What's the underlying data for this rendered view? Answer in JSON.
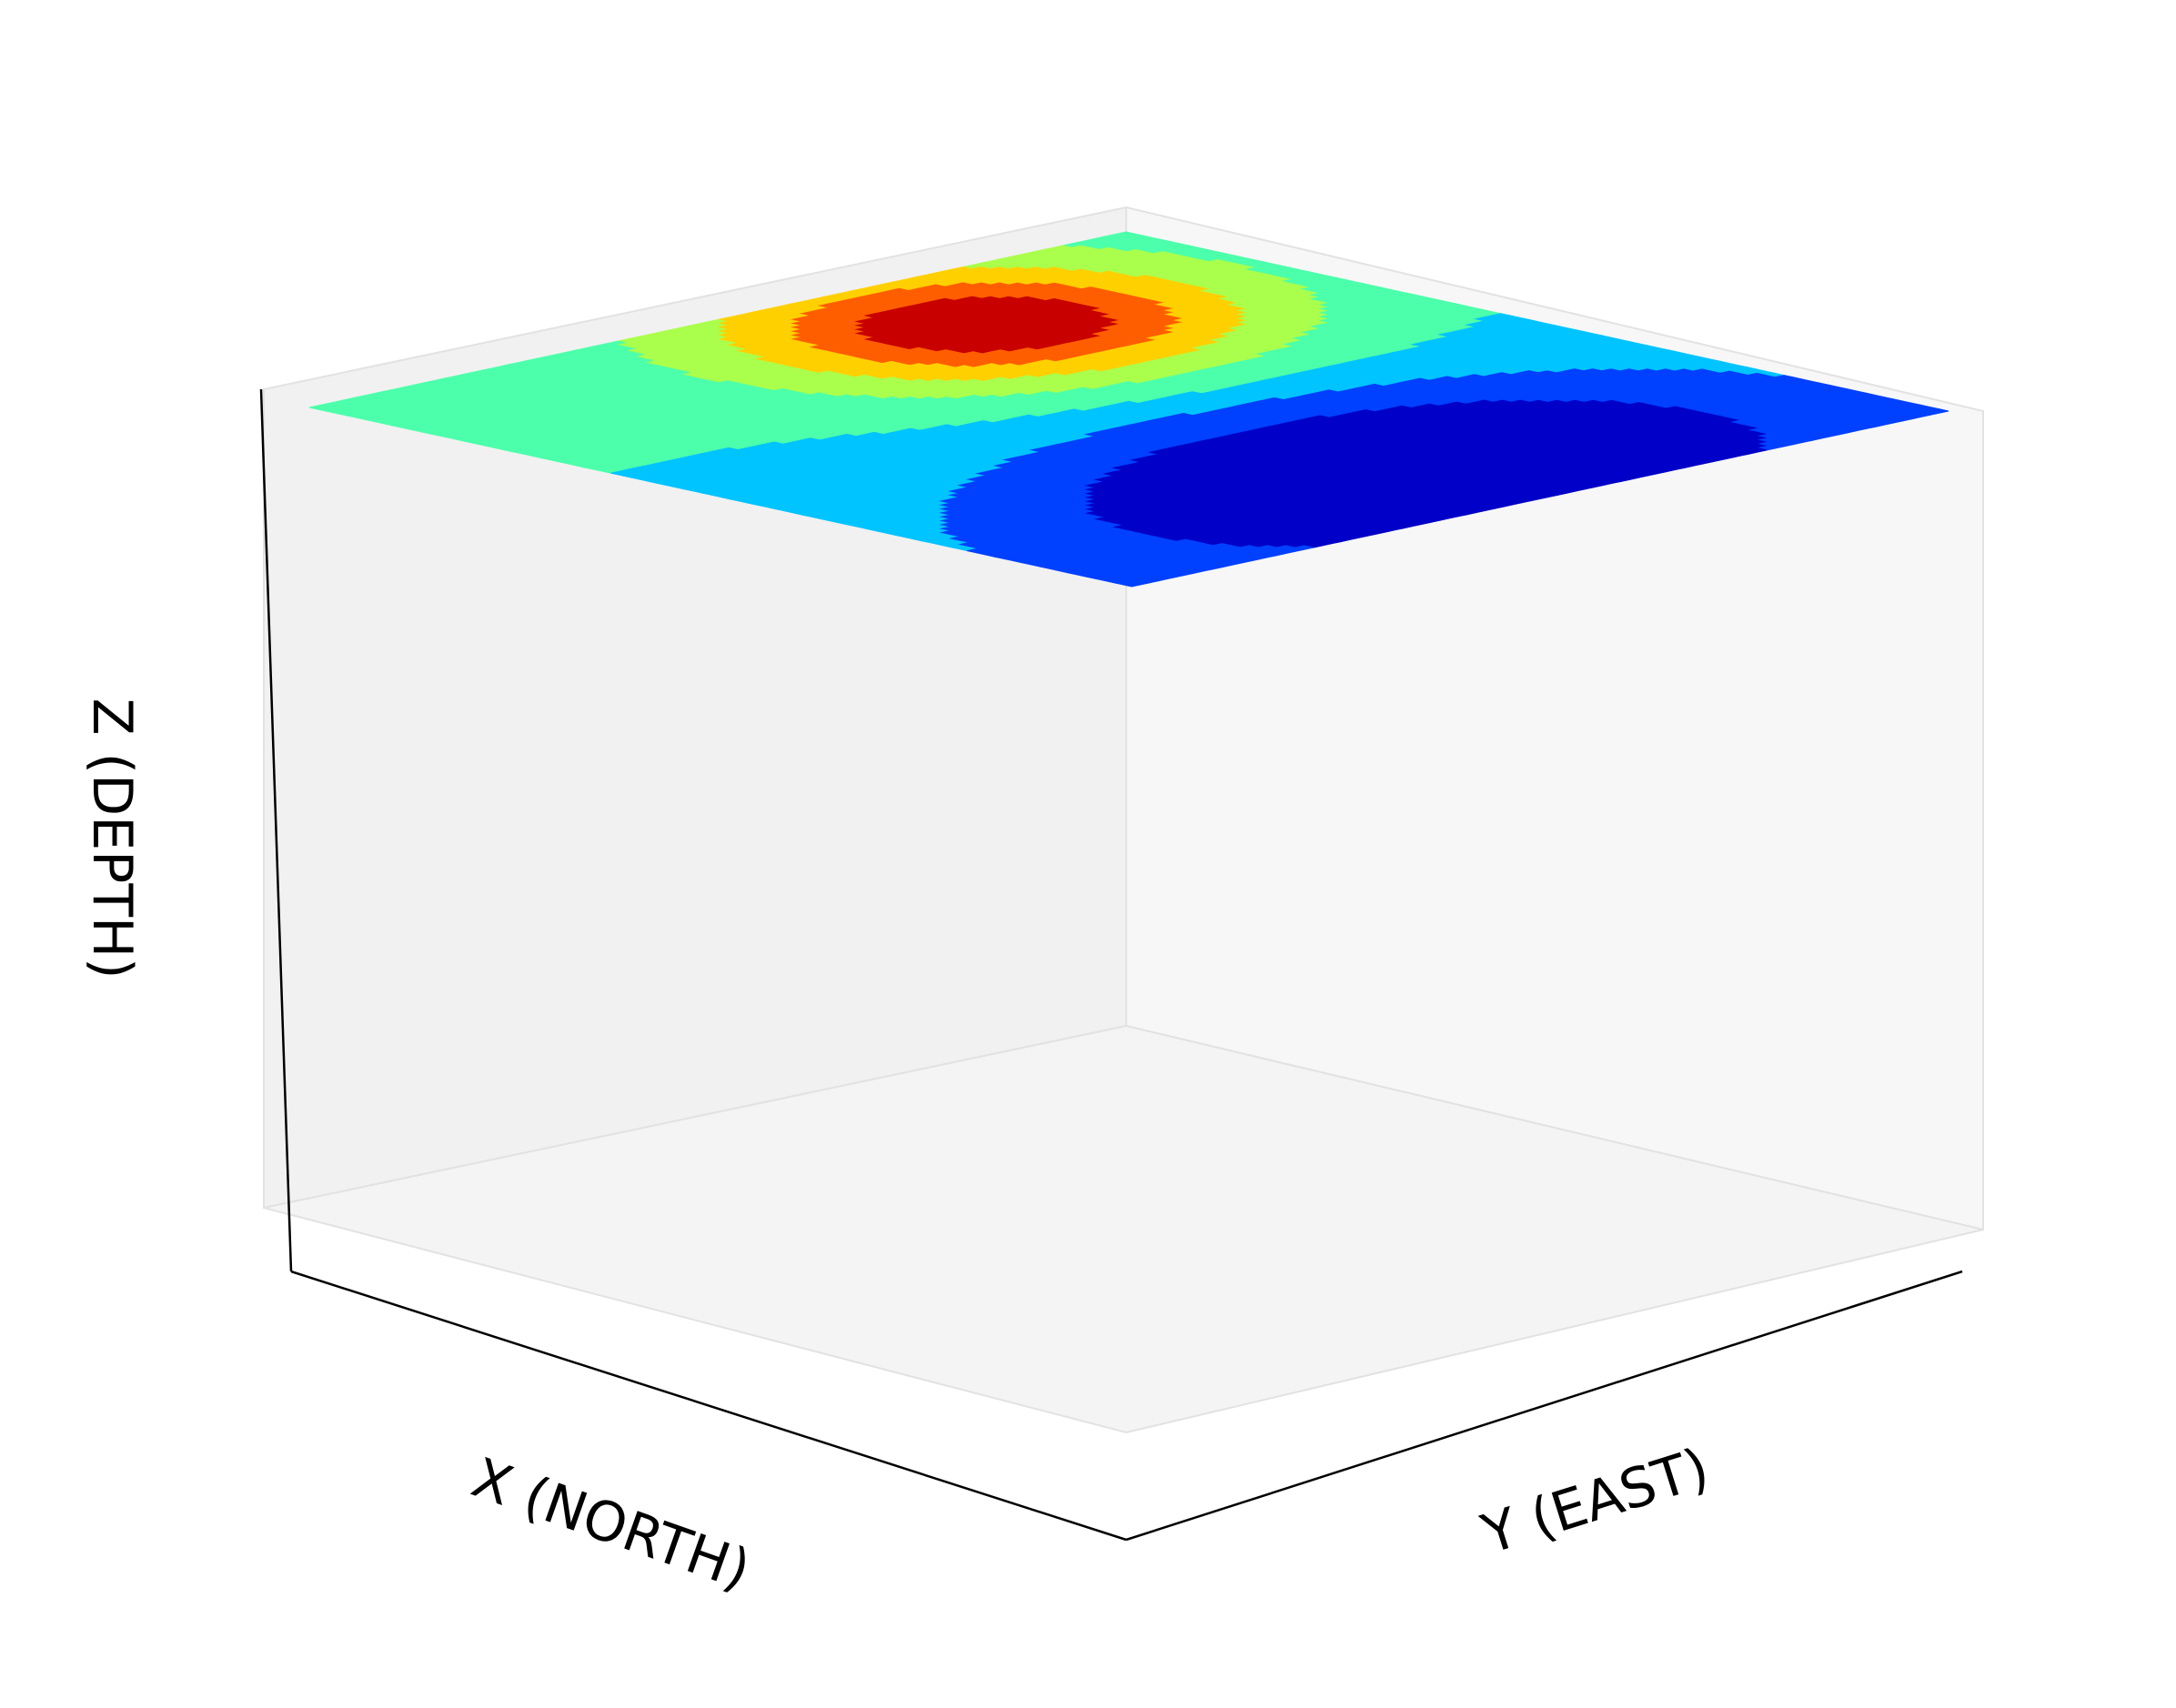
{
  "chart_data": {
    "type": "contour",
    "projection": "3d",
    "xlabel": "X (NORTH)",
    "ylabel": "Y (EAST)",
    "zlabel": "Z (DEPTH)",
    "ticks_visible": false,
    "grid": false,
    "colormap": "jet",
    "pane_colors": {
      "left_wall": "#f1f1f1",
      "right_wall": "#f7f7f7",
      "floor": "#f4f4f4"
    },
    "axis_line_color": "#000000",
    "level_colors": [
      "#0000c8",
      "#0040ff",
      "#00c4ff",
      "#4cffaa",
      "#aaff4c",
      "#ffd000",
      "#ff5e00",
      "#c80000"
    ],
    "contour_surface": {
      "position": "top of box",
      "high_center": {
        "x_fraction": 0.35,
        "y_fraction": 0.18
      },
      "low_center": {
        "x_fraction": 0.5,
        "y_fraction": 0.85
      }
    }
  }
}
